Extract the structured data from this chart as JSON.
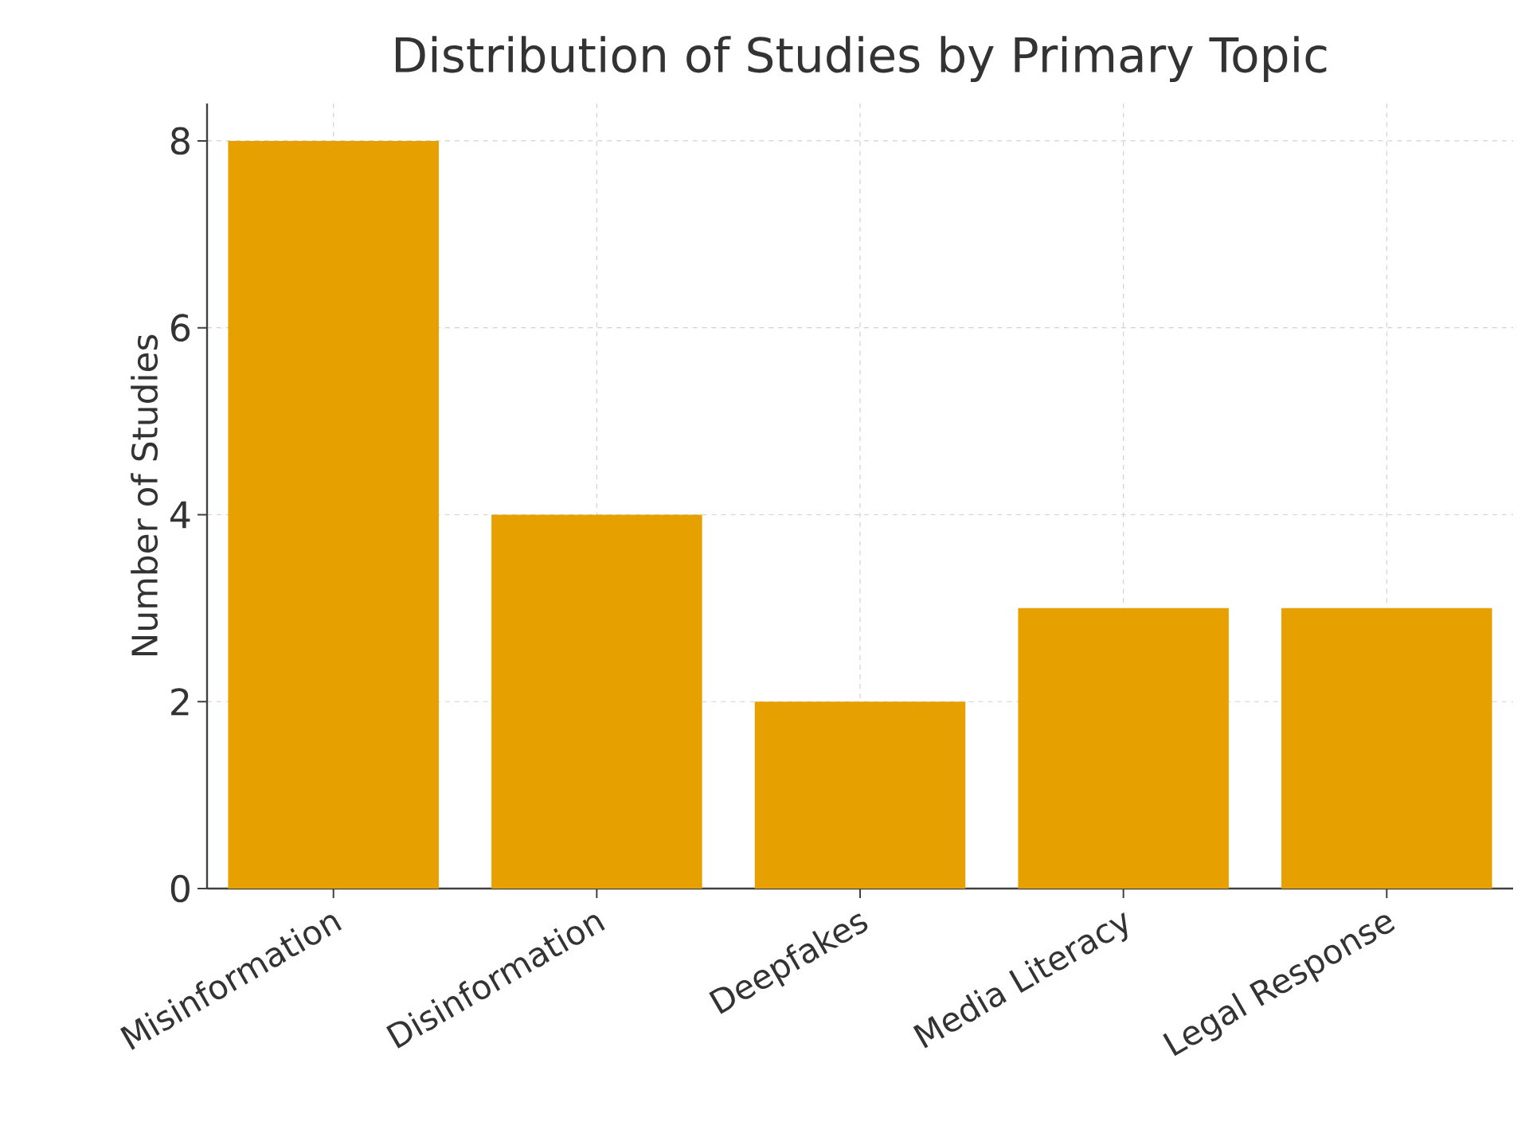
{
  "chart_data": {
    "type": "bar",
    "title": "Distribution of Studies by Primary Topic",
    "ylabel": "Number of Studies",
    "categories": [
      "Misinformation",
      "Disinformation",
      "Deepfakes",
      "Media Literacy",
      "Legal Response"
    ],
    "values": [
      8,
      4,
      2,
      3,
      3
    ],
    "color": "#e6a000",
    "ylim": [
      0,
      8.4
    ],
    "yticks": [
      0,
      2,
      4,
      6,
      8
    ],
    "grid": true
  }
}
